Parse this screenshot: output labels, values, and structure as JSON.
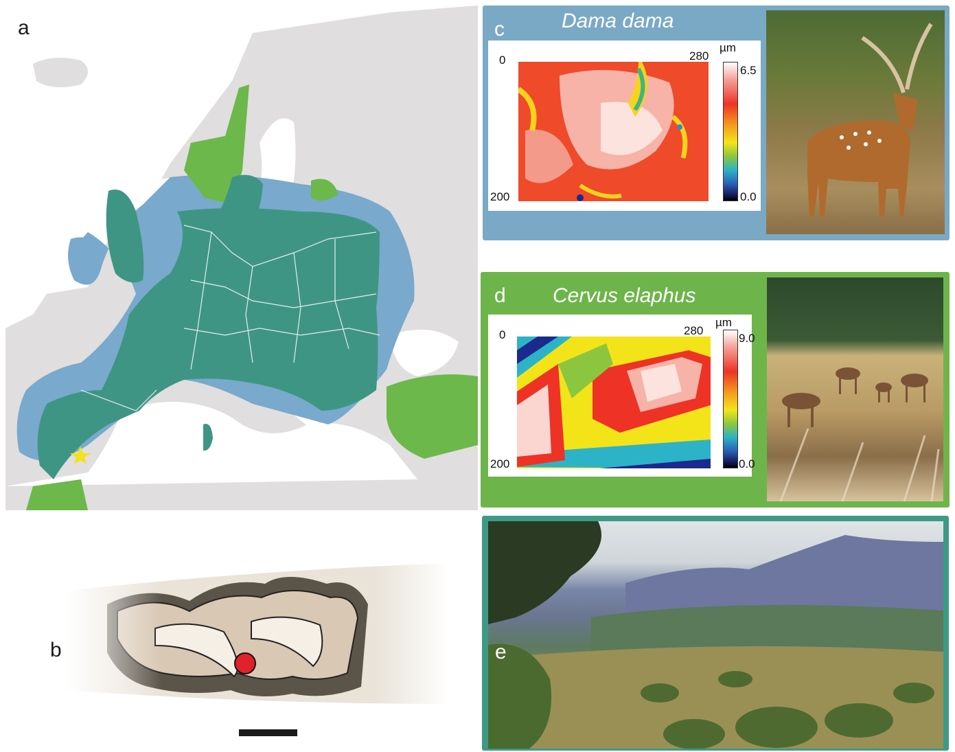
{
  "panels": {
    "a": {
      "letter": "a"
    },
    "b": {
      "letter": "b"
    },
    "c": {
      "letter": "c",
      "species": "Dama dama",
      "axis": {
        "x_left": "0",
        "x_right": "280",
        "y_bottom": "200"
      },
      "colorbar": {
        "unit": "µm",
        "max": "6.5",
        "min": "0.0"
      },
      "frame_color": "#7aa9c5"
    },
    "d": {
      "letter": "d",
      "species": "Cervus elaphus",
      "axis": {
        "x_left": "0",
        "x_right": "280",
        "y_bottom": "200"
      },
      "colorbar": {
        "unit": "µm",
        "max": "9.0",
        "min": "0.0"
      },
      "frame_color": "#6db54a"
    },
    "e": {
      "letter": "e",
      "frame_color": "#3d9a84"
    }
  },
  "legend_colors": {
    "both_species": "#3f9584",
    "red_deer_only": "#6cb84b",
    "fallow_deer_only": "#79a9cc",
    "land": "#e0dede",
    "sea": "#ffffff"
  },
  "marker_colors": {
    "study_site_star": "#f4e21a",
    "sample_point": "#e2222a"
  }
}
